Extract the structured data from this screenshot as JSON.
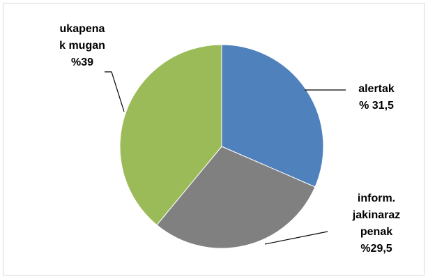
{
  "chart_data": {
    "type": "pie",
    "categories": [
      [
        "alertak"
      ],
      [
        "inform.",
        "jakinaraz",
        "penak"
      ],
      [
        "ukapena",
        "k mugan"
      ]
    ],
    "values": [
      31.5,
      29.5,
      39
    ],
    "value_labels": [
      "% 31,5",
      "%29,5",
      "%39"
    ],
    "colors": [
      "#4f81bd",
      "#808080",
      "#9bbb59"
    ]
  }
}
